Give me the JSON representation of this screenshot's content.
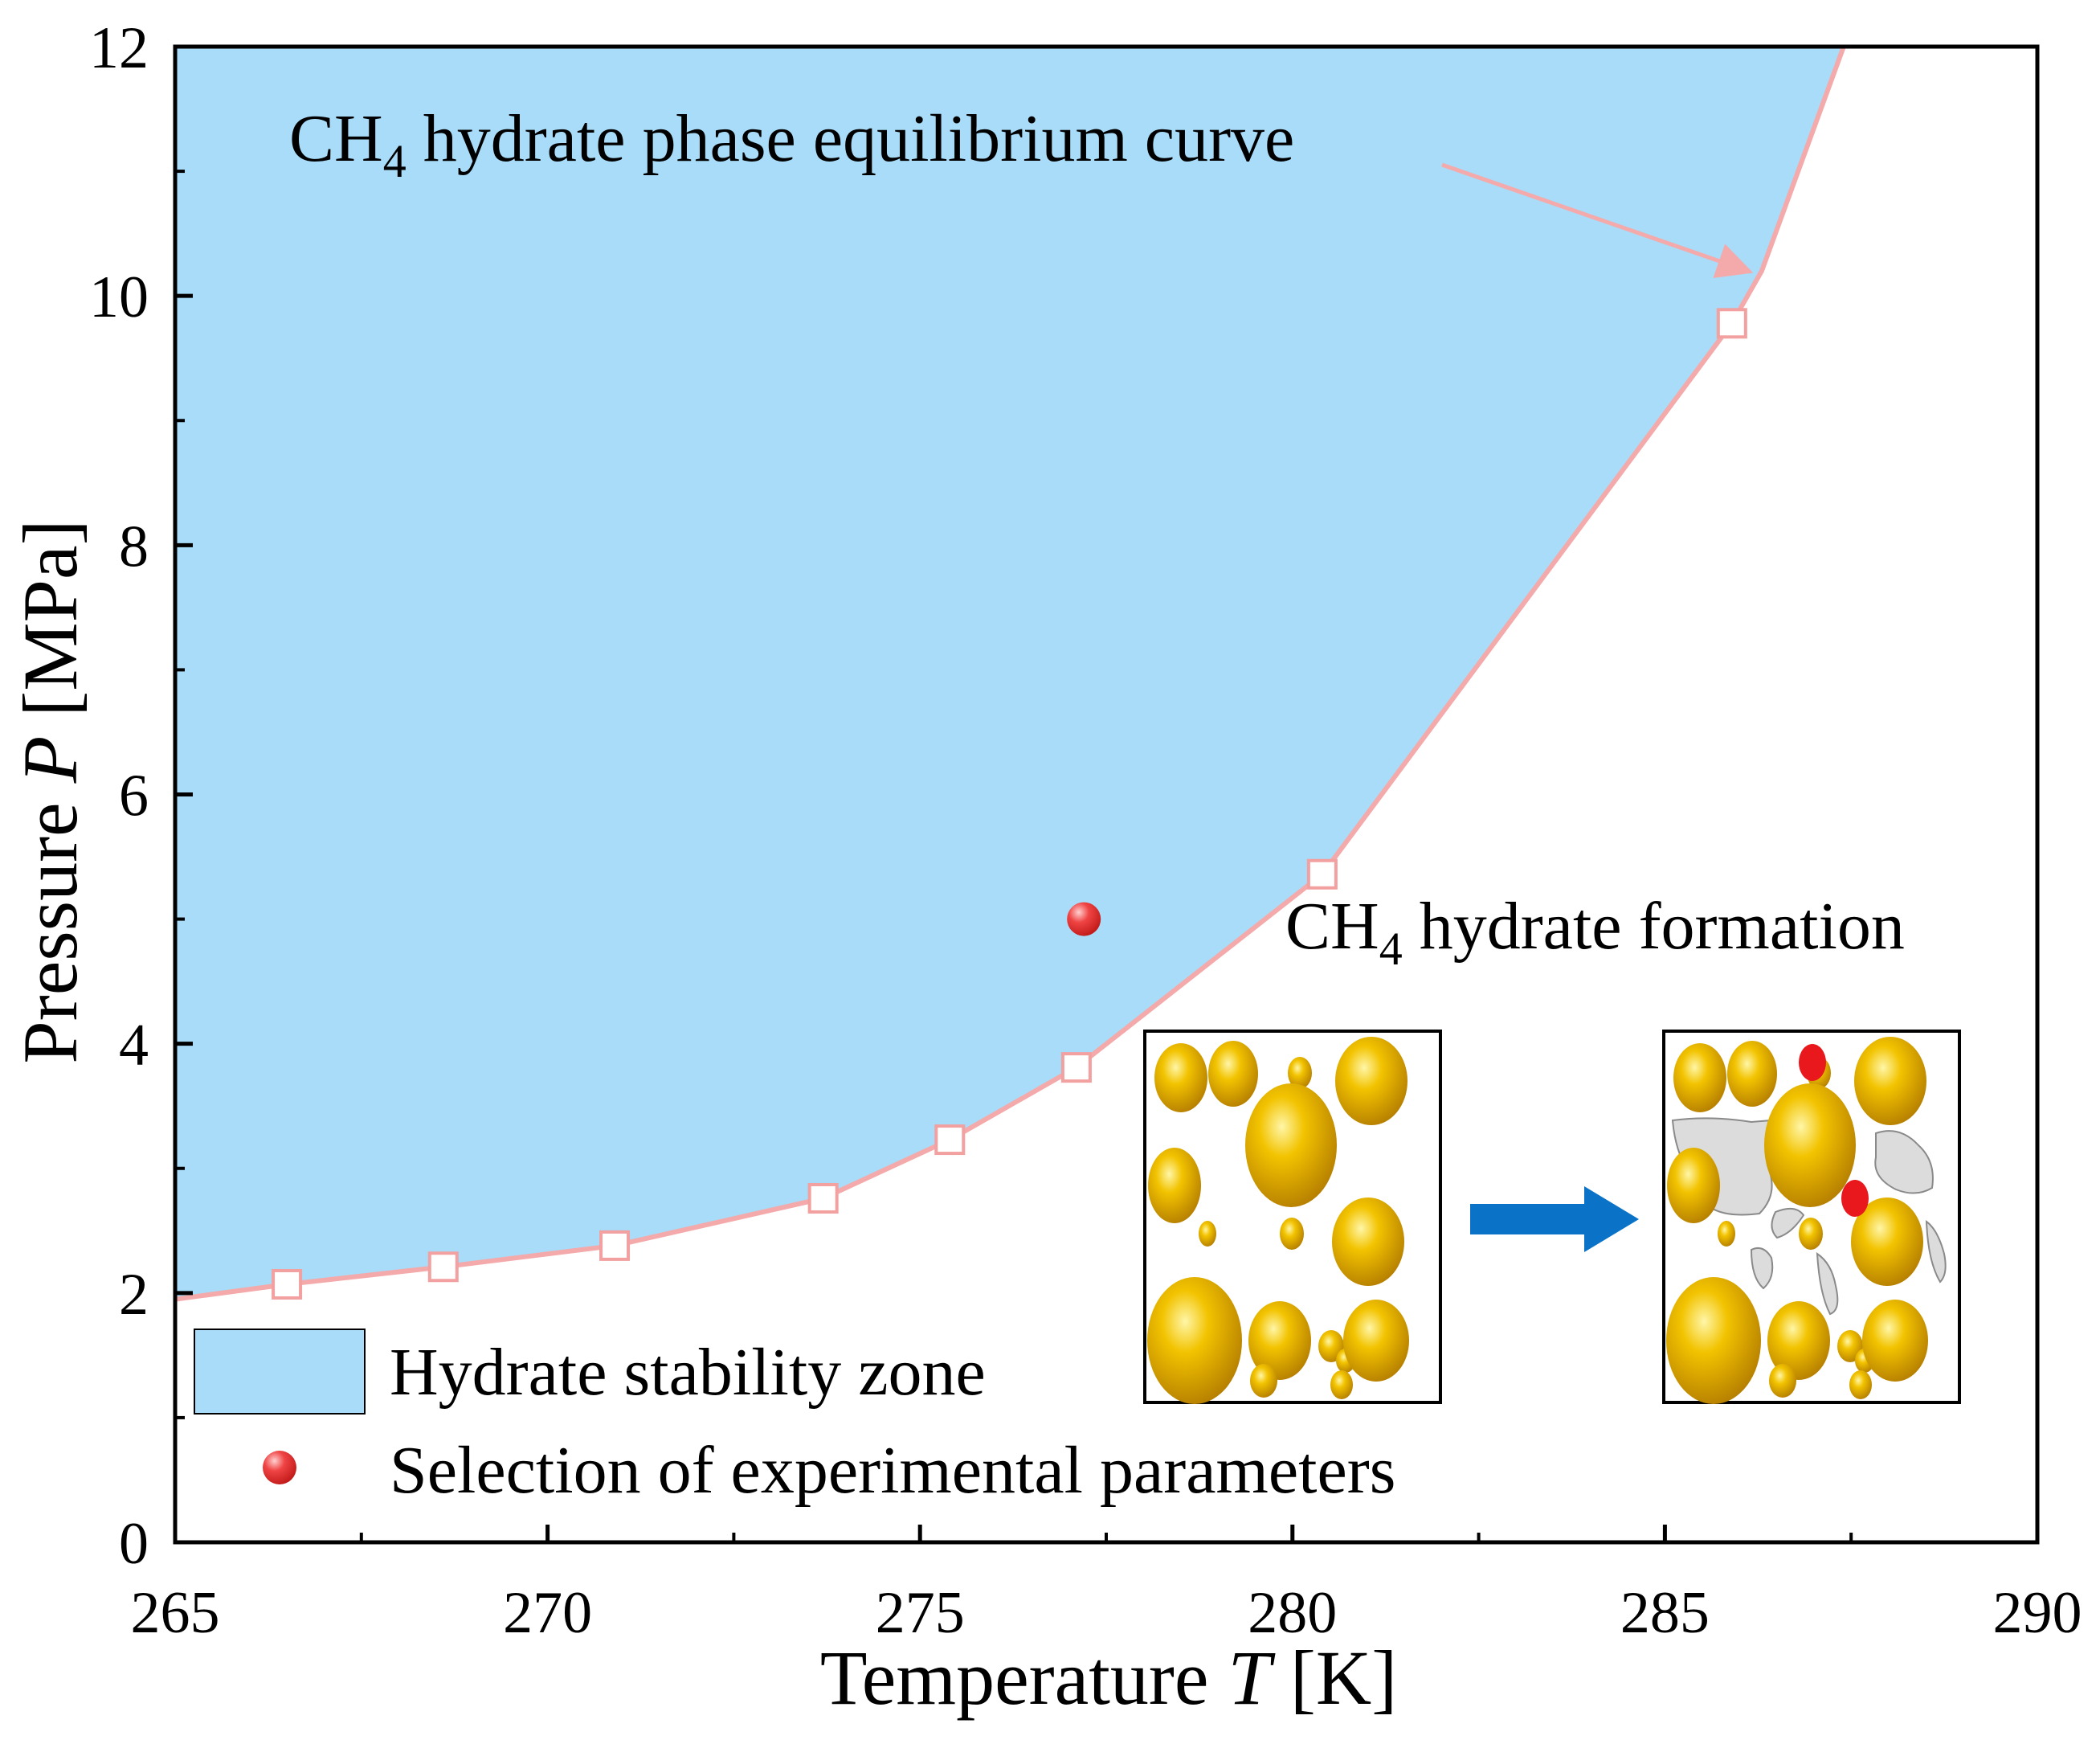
{
  "chart_data": {
    "type": "area",
    "xlabel_prefix": "Temperature ",
    "xlabel_var": "T",
    "xlabel_unit": " [K]",
    "ylabel_prefix": "Pressure ",
    "ylabel_var": "P",
    "ylabel_unit": " [MPa]",
    "xlim": [
      265,
      290
    ],
    "ylim": [
      0,
      12
    ],
    "x_ticks": [
      "265",
      "270",
      "275",
      "280",
      "285",
      "290"
    ],
    "y_ticks": [
      "0",
      "2",
      "4",
      "6",
      "8",
      "10",
      "12"
    ],
    "equilibrium_curve": {
      "name": "CH4 hydrate phase equilibrium curve",
      "markers": [
        {
          "x": 266.5,
          "y": 2.07
        },
        {
          "x": 268.6,
          "y": 2.21
        },
        {
          "x": 270.9,
          "y": 2.38
        },
        {
          "x": 273.7,
          "y": 2.76
        },
        {
          "x": 275.4,
          "y": 3.23
        },
        {
          "x": 277.1,
          "y": 3.81
        },
        {
          "x": 280.4,
          "y": 5.36
        },
        {
          "x": 285.9,
          "y": 9.78
        }
      ],
      "line_extension": [
        {
          "x": 265.0,
          "y": 1.95
        },
        {
          "x": 286.3,
          "y": 10.2
        },
        {
          "x": 287.4,
          "y": 12.0
        }
      ]
    },
    "experimental_point": {
      "x": 277.2,
      "y": 5.0
    },
    "annotation_curve_prefix": "CH",
    "annotation_curve_sub": "4",
    "annotation_curve_suffix": " hydrate phase equilibrium curve",
    "annotation_formation_prefix": "CH",
    "annotation_formation_sub": "4",
    "annotation_formation_suffix": " hydrate formation",
    "legend": [
      {
        "label": "Hydrate stability zone"
      },
      {
        "label": "Selection of experimental parameters"
      }
    ],
    "colors": {
      "zone_fill": "#a8dcf8",
      "curve": "#f4aaaa",
      "marker_edge": "#f2a0a0",
      "point": "#e8282c",
      "grain": "#e8a800",
      "arrow": "#0a73c8",
      "hydrate": "#dcdcdc"
    }
  }
}
